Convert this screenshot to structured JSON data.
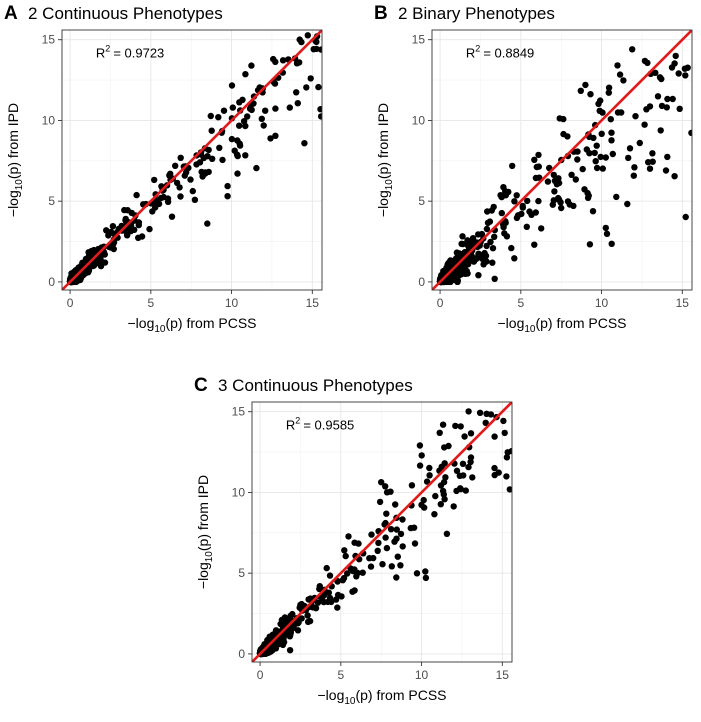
{
  "chart_data": [
    {
      "id": "A",
      "type": "scatter",
      "panel_label": "A",
      "title": "2 Continuous Phenotypes",
      "r2_label": "R",
      "r2_value": "= 0.9723",
      "xlabel": {
        "pre": "−log",
        "sub": "10",
        "post": "(p) from PCSS"
      },
      "ylabel": {
        "pre": "−log",
        "sub": "10",
        "post": "(p) from IPD"
      },
      "xlim": [
        -0.5,
        15.6
      ],
      "ylim": [
        -0.5,
        15.6
      ],
      "xticks": [
        0,
        5,
        10,
        15
      ],
      "yticks": [
        0,
        5,
        10,
        15
      ],
      "diagonal": {
        "color": "#e31a1c",
        "slope": 1,
        "intercept": 0
      },
      "point_color": "#000000",
      "seed": 11,
      "n_points": 1600,
      "spread": 0.16,
      "bias": 0.06
    },
    {
      "id": "B",
      "type": "scatter",
      "panel_label": "B",
      "title": "2 Binary Phenotypes",
      "r2_label": "R",
      "r2_value": "= 0.8849",
      "xlabel": {
        "pre": "−log",
        "sub": "10",
        "post": "(p) from PCSS"
      },
      "ylabel": {
        "pre": "−log",
        "sub": "10",
        "post": "(p) from IPD"
      },
      "xlim": [
        -0.5,
        15.6
      ],
      "ylim": [
        -0.5,
        15.6
      ],
      "xticks": [
        0,
        5,
        10,
        15
      ],
      "yticks": [
        0,
        5,
        10,
        15
      ],
      "diagonal": {
        "color": "#e31a1c",
        "slope": 1,
        "intercept": 0
      },
      "point_color": "#000000",
      "seed": 27,
      "n_points": 1700,
      "spread": 0.34,
      "bias": 0.12
    },
    {
      "id": "C",
      "type": "scatter",
      "panel_label": "C",
      "title": "3 Continuous Phenotypes",
      "r2_label": "R",
      "r2_value": "= 0.9585",
      "xlabel": {
        "pre": "−log",
        "sub": "10",
        "post": "(p) from PCSS"
      },
      "ylabel": {
        "pre": "−log",
        "sub": "10",
        "post": "(p) from IPD"
      },
      "xlim": [
        -0.5,
        15.6
      ],
      "ylim": [
        -0.5,
        15.6
      ],
      "xticks": [
        0,
        5,
        10,
        15
      ],
      "yticks": [
        0,
        5,
        10,
        15
      ],
      "diagonal": {
        "color": "#e31a1c",
        "slope": 1,
        "intercept": 0
      },
      "point_color": "#000000",
      "seed": 43,
      "n_points": 1500,
      "spread": 0.2,
      "bias": 0.05
    }
  ]
}
